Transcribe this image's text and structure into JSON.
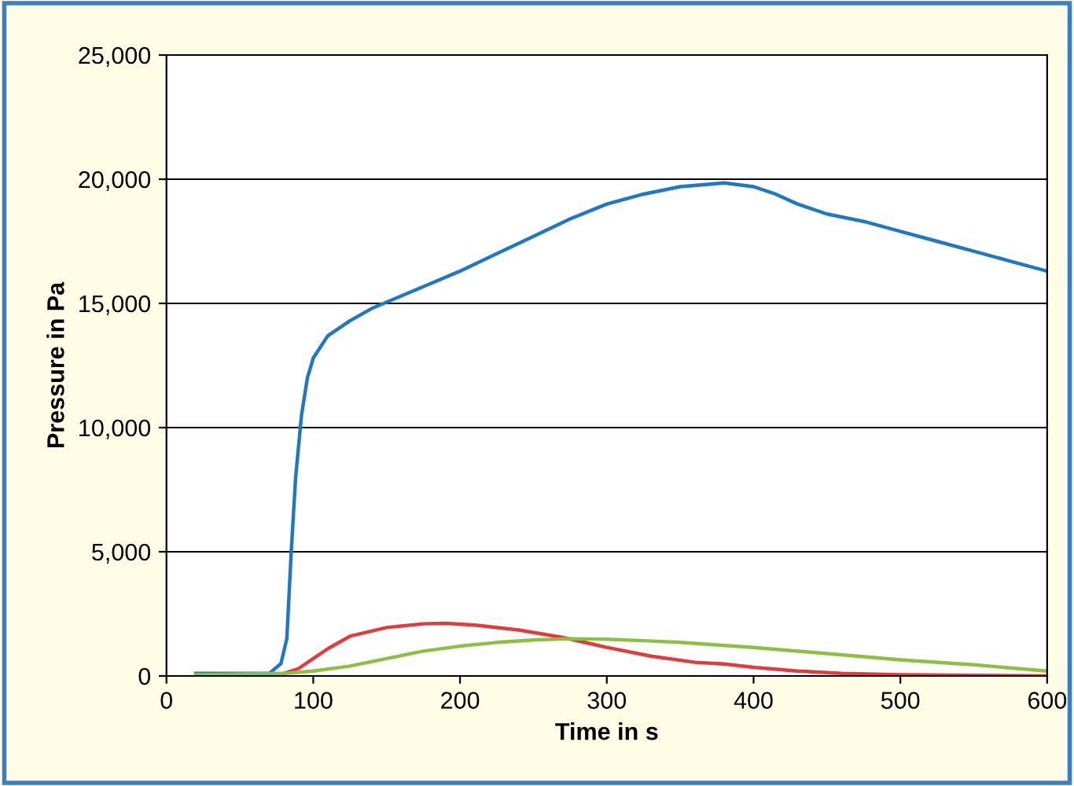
{
  "chart_data": {
    "type": "line",
    "xlabel": "Time in s",
    "ylabel": "Pressure in Pa",
    "xlim": [
      0,
      600
    ],
    "xticks": [
      0,
      100,
      200,
      300,
      400,
      500,
      600
    ],
    "ylim": [
      0,
      25000
    ],
    "yticks": [
      {
        "value": 0,
        "label": "0"
      },
      {
        "value": 5000,
        "label": "5,000"
      },
      {
        "value": 10000,
        "label": "10,000"
      },
      {
        "value": 15000,
        "label": "15,000"
      },
      {
        "value": 20000,
        "label": "20,000"
      },
      {
        "value": 25000,
        "label": "25,000"
      }
    ],
    "grid": "y",
    "marker": "none",
    "line_style": "solid",
    "series": [
      {
        "color": "#1f78c1",
        "x": [
          20,
          70,
          78,
          82,
          85,
          88,
          92,
          96,
          100,
          110,
          125,
          140,
          160,
          180,
          200,
          225,
          250,
          275,
          300,
          325,
          350,
          380,
          400,
          415,
          430,
          450,
          475,
          500,
          525,
          550,
          575,
          600
        ],
        "values": [
          100,
          100,
          500,
          1500,
          5000,
          8000,
          10500,
          12000,
          12800,
          13700,
          14300,
          14800,
          15300,
          15800,
          16300,
          17000,
          17700,
          18400,
          19000,
          19400,
          19700,
          19850,
          19700,
          19400,
          19000,
          18600,
          18300,
          17900,
          17500,
          17100,
          16700,
          16300
        ]
      },
      {
        "color": "#e03c3c",
        "x": [
          80,
          90,
          100,
          110,
          125,
          150,
          175,
          190,
          210,
          240,
          270,
          300,
          330,
          360,
          380,
          400,
          430,
          460,
          500,
          600
        ],
        "values": [
          100,
          300,
          700,
          1100,
          1600,
          1950,
          2100,
          2120,
          2050,
          1850,
          1550,
          1150,
          800,
          550,
          480,
          350,
          200,
          100,
          50,
          0
        ]
      },
      {
        "color": "#8dbf45",
        "x": [
          20,
          80,
          100,
          125,
          150,
          175,
          200,
          225,
          250,
          275,
          300,
          325,
          350,
          400,
          450,
          500,
          550,
          600
        ],
        "values": [
          50,
          100,
          200,
          400,
          700,
          1000,
          1200,
          1350,
          1450,
          1500,
          1480,
          1420,
          1350,
          1150,
          900,
          650,
          450,
          200
        ]
      }
    ]
  }
}
